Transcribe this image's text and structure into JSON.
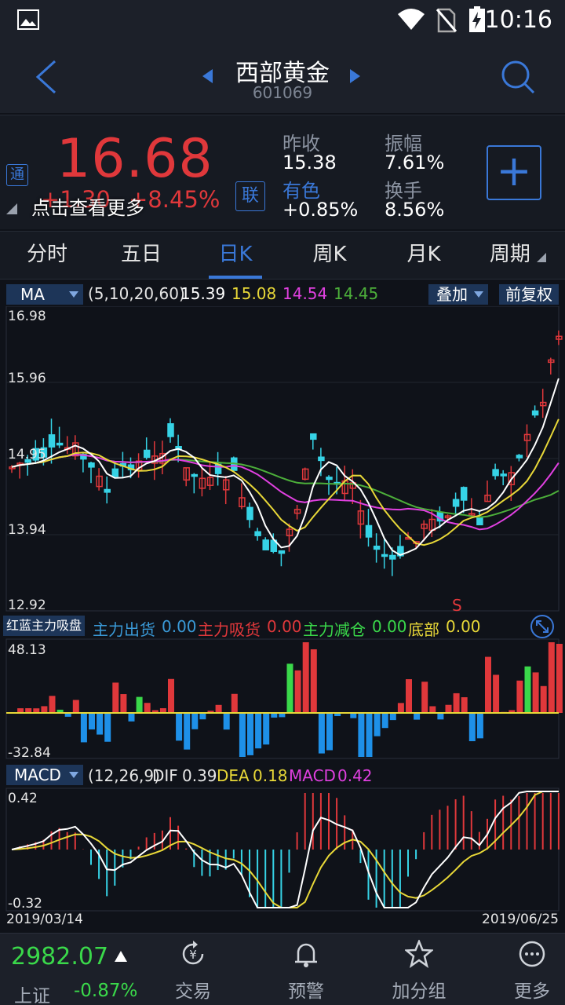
{
  "status_bar": {
    "time": "10:16"
  },
  "header": {
    "title": "西部黄金",
    "code": "601069"
  },
  "quote": {
    "price": "16.68",
    "change": "+1.30",
    "change_pct": "+8.45%",
    "tong_badge": "通",
    "lian_badge": "联",
    "tip": "点击查看更多",
    "stats": [
      {
        "label": "昨收",
        "value": "15.38"
      },
      {
        "label": "有色",
        "value": "+0.85%"
      },
      {
        "label": "振幅",
        "value": "7.61%"
      },
      {
        "label": "换手",
        "value": "8.56%"
      }
    ]
  },
  "tabs": [
    {
      "label": "分时"
    },
    {
      "label": "五日"
    },
    {
      "label": "日K"
    },
    {
      "label": "周K"
    },
    {
      "label": "月K"
    },
    {
      "label": "周期"
    }
  ],
  "ma_bar": {
    "selector": "MA",
    "params": "(5,10,20,60)",
    "values": [
      "15.39",
      "15.08",
      "14.54",
      "14.45"
    ],
    "overlay_btn": "叠加",
    "adjust_btn": "前复权"
  },
  "kline": {
    "y_labels": [
      "16.98",
      "15.96",
      "14.95",
      "13.94",
      "12.92"
    ],
    "marker": "S"
  },
  "capital_bar": {
    "selector": "红蓝主力吸盘",
    "items": [
      {
        "label": "主力出货",
        "value": "0.00"
      },
      {
        "label": "主力吸货",
        "value": "0.00"
      },
      {
        "label": "主力减仓",
        "value": "0.00"
      },
      {
        "label": "底部",
        "value": "0.00"
      }
    ],
    "y_labels": [
      "48.13",
      "-32.84"
    ]
  },
  "macd_bar": {
    "selector": "MACD",
    "params": "(12,26,9)",
    "dif_label": "DIF",
    "dif_value": "0.39",
    "dea_label": "DEA",
    "dea_value": "0.18",
    "macd_label": "MACD",
    "macd_value": "0.42",
    "y_labels": [
      "0.42",
      "-0.32"
    ],
    "date_start": "2019/03/14",
    "date_end": "2019/06/25"
  },
  "colors": {
    "up": "#e0383b",
    "down": "#36d3e6",
    "accent": "#3a78d8",
    "ma5": "#ffffff",
    "ma10": "#e8d838",
    "ma20": "#e040e0",
    "ma60": "#4caf3a"
  },
  "bottom_bar": {
    "index_value": "2982.07",
    "index_name": "上证",
    "index_change": "-0.87%",
    "nav": [
      {
        "label": "交易",
        "icon": "trade-icon"
      },
      {
        "label": "预警",
        "icon": "bell-icon"
      },
      {
        "label": "加分组",
        "icon": "star-icon"
      },
      {
        "label": "更多",
        "icon": "more-icon"
      }
    ]
  }
}
